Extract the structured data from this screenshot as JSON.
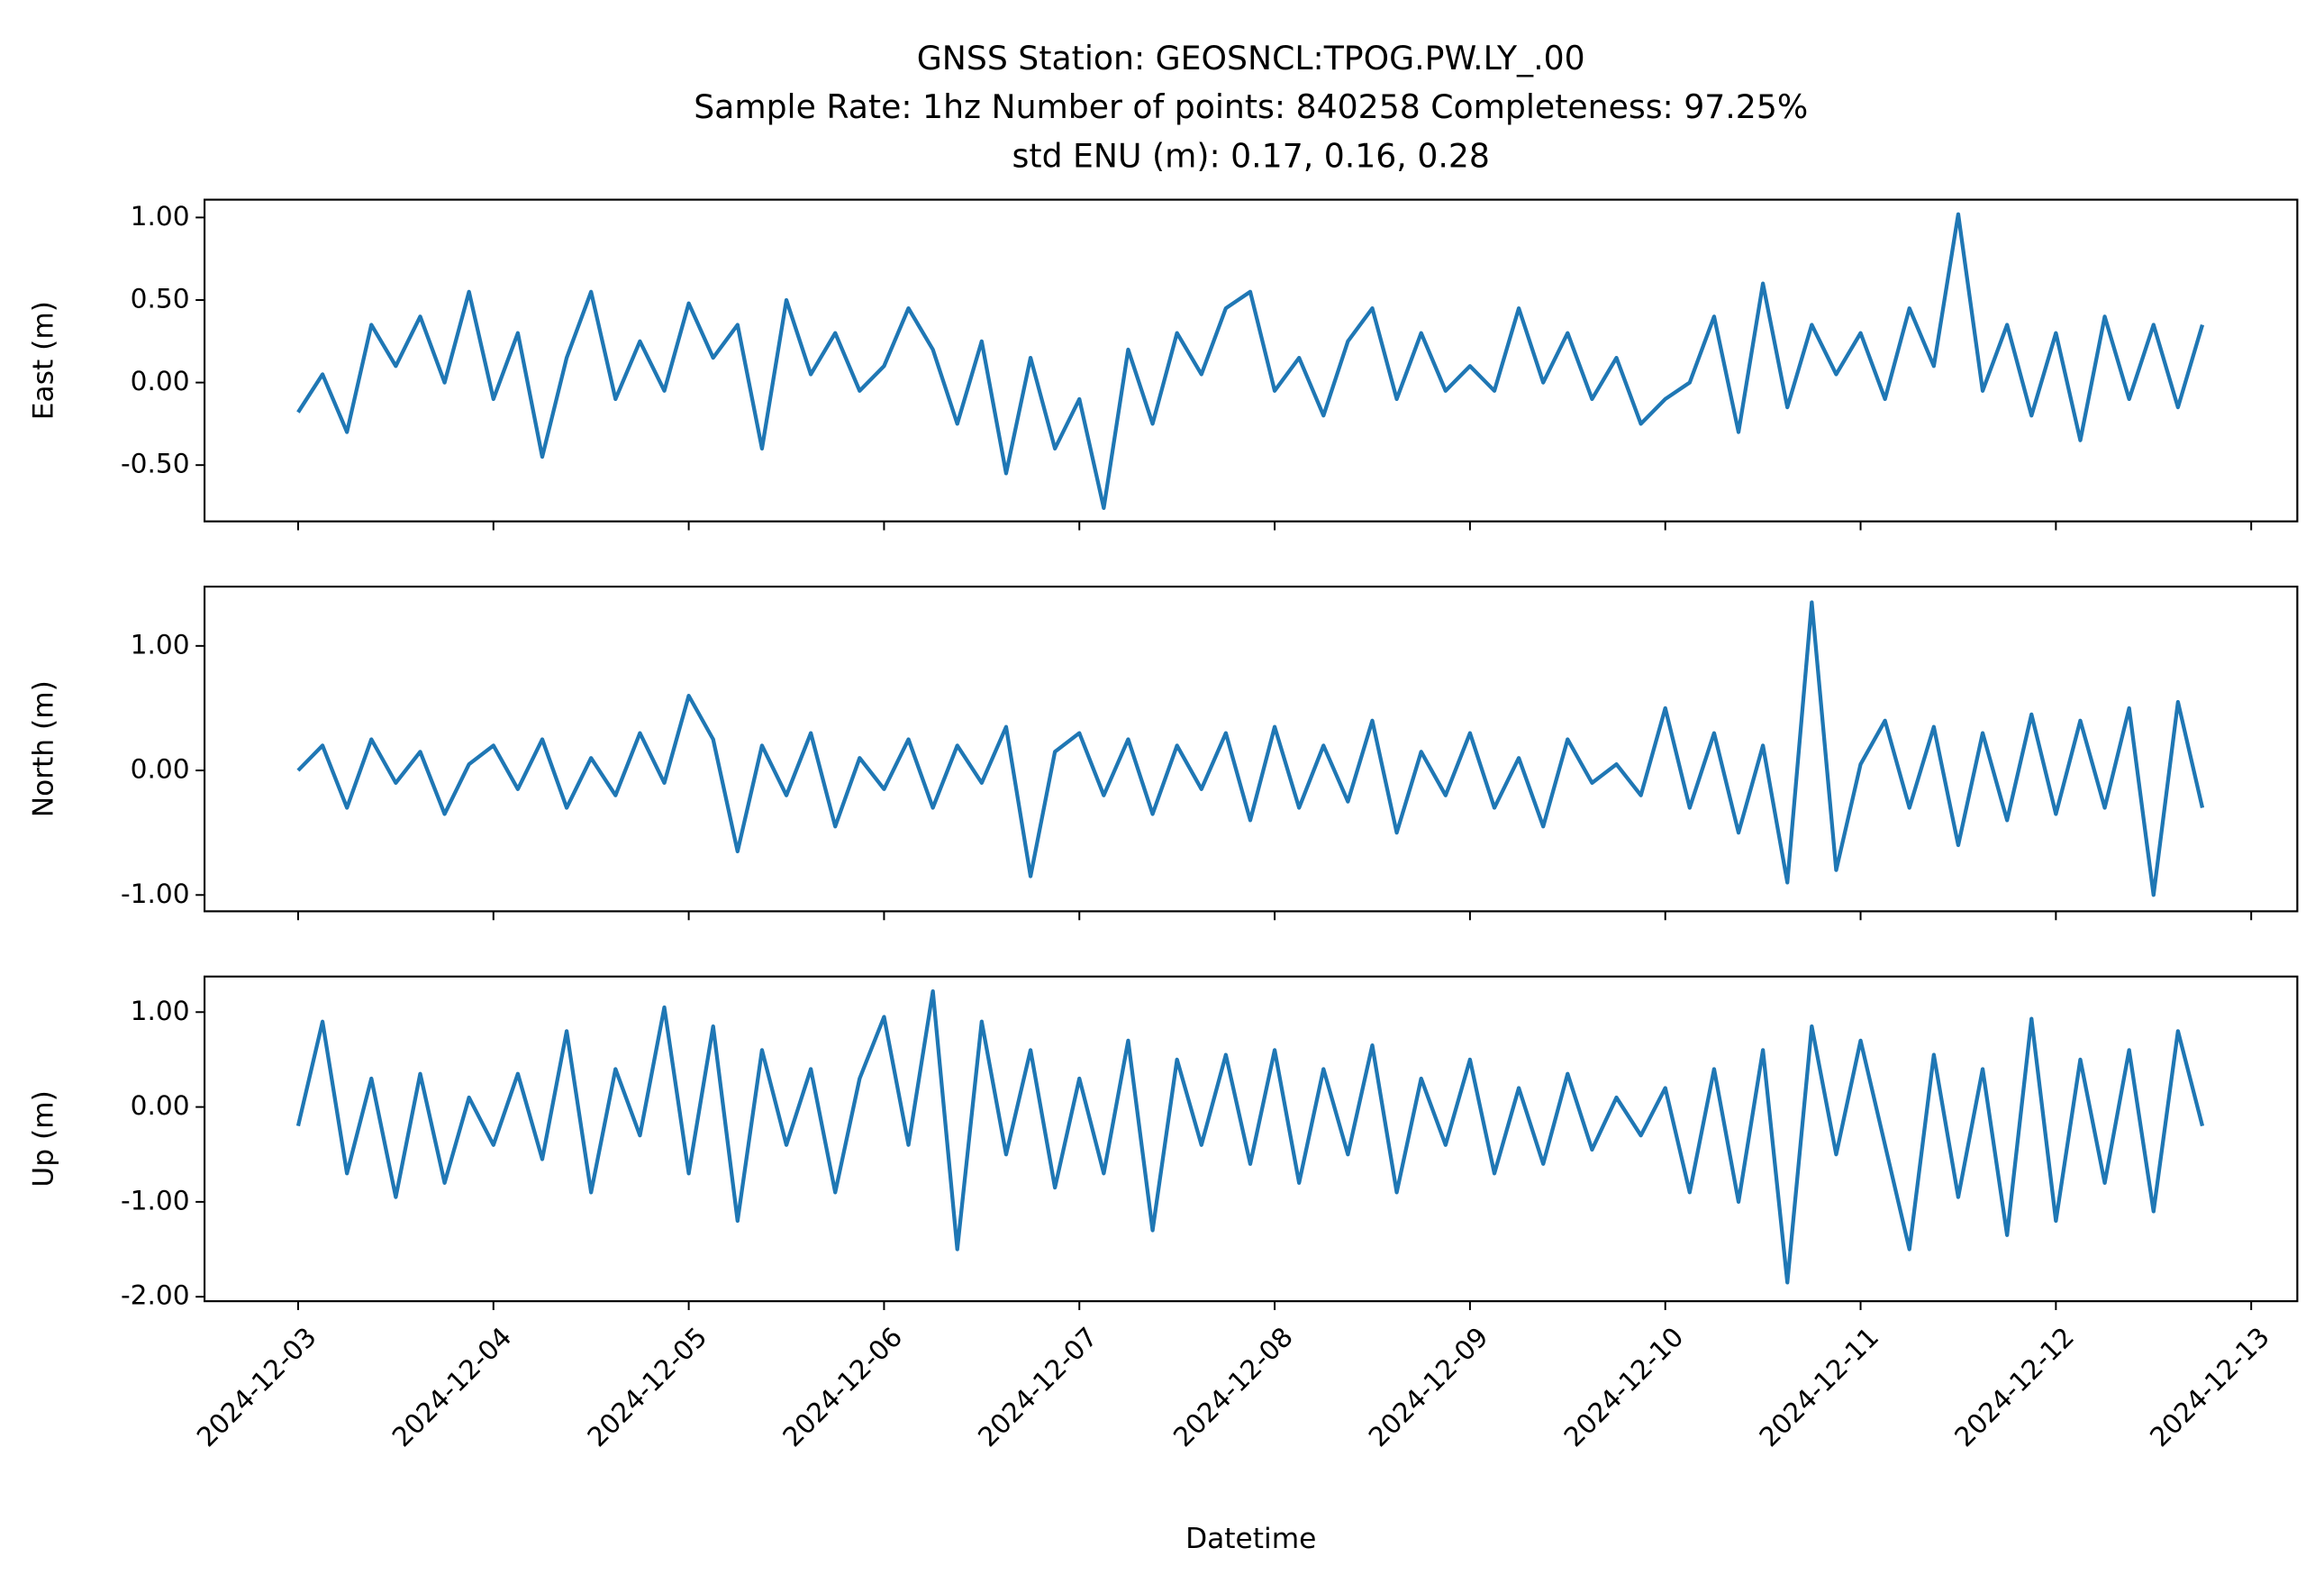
{
  "chart_data": {
    "type": "line",
    "title": [
      "GNSS Station: GEOSNCL:TPOG.PW.LY_.00",
      "Sample Rate: 1hz   Number of points: 840258    Completeness:  97.25%",
      "std ENU (m):  0.17, 0.16, 0.28"
    ],
    "xlabel": "Datetime",
    "xlim": [
      "2024-12-02T12:30",
      "2024-12-13T05:40"
    ],
    "xticks": [
      "2024-12-03",
      "2024-12-04",
      "2024-12-05",
      "2024-12-06",
      "2024-12-07",
      "2024-12-08",
      "2024-12-09",
      "2024-12-10",
      "2024-12-11",
      "2024-12-12",
      "2024-12-13"
    ],
    "x": [
      "2024-12-03T00:00",
      "2024-12-03T03:00",
      "2024-12-03T06:00",
      "2024-12-03T09:00",
      "2024-12-03T12:00",
      "2024-12-03T15:00",
      "2024-12-03T18:00",
      "2024-12-03T21:00",
      "2024-12-04T00:00",
      "2024-12-04T03:00",
      "2024-12-04T06:00",
      "2024-12-04T09:00",
      "2024-12-04T12:00",
      "2024-12-04T15:00",
      "2024-12-04T18:00",
      "2024-12-04T21:00",
      "2024-12-05T00:00",
      "2024-12-05T03:00",
      "2024-12-05T06:00",
      "2024-12-05T09:00",
      "2024-12-05T12:00",
      "2024-12-05T15:00",
      "2024-12-05T18:00",
      "2024-12-05T21:00",
      "2024-12-06T00:00",
      "2024-12-06T03:00",
      "2024-12-06T06:00",
      "2024-12-06T09:00",
      "2024-12-06T12:00",
      "2024-12-06T15:00",
      "2024-12-06T18:00",
      "2024-12-06T21:00",
      "2024-12-07T00:00",
      "2024-12-07T03:00",
      "2024-12-07T06:00",
      "2024-12-07T09:00",
      "2024-12-07T12:00",
      "2024-12-07T15:00",
      "2024-12-07T18:00",
      "2024-12-07T21:00",
      "2024-12-08T00:00",
      "2024-12-08T03:00",
      "2024-12-08T06:00",
      "2024-12-08T09:00",
      "2024-12-08T12:00",
      "2024-12-08T15:00",
      "2024-12-08T18:00",
      "2024-12-08T21:00",
      "2024-12-09T00:00",
      "2024-12-09T03:00",
      "2024-12-09T06:00",
      "2024-12-09T09:00",
      "2024-12-09T12:00",
      "2024-12-09T15:00",
      "2024-12-09T18:00",
      "2024-12-09T21:00",
      "2024-12-10T00:00",
      "2024-12-10T03:00",
      "2024-12-10T06:00",
      "2024-12-10T09:00",
      "2024-12-10T12:00",
      "2024-12-10T15:00",
      "2024-12-10T18:00",
      "2024-12-10T21:00",
      "2024-12-11T00:00",
      "2024-12-11T03:00",
      "2024-12-11T06:00",
      "2024-12-11T09:00",
      "2024-12-11T12:00",
      "2024-12-11T15:00",
      "2024-12-11T18:00",
      "2024-12-11T21:00",
      "2024-12-12T00:00",
      "2024-12-12T03:00",
      "2024-12-12T06:00",
      "2024-12-12T09:00",
      "2024-12-12T12:00",
      "2024-12-12T15:00",
      "2024-12-12T18:00"
    ],
    "panels": [
      {
        "ylabel": "East (m)",
        "ylim": [
          -0.841,
          1.108
        ],
        "yticks": [
          {
            "value": -0.5,
            "label": "-0.50"
          },
          {
            "value": 0,
            "label": "0.00"
          },
          {
            "value": 0.5,
            "label": "0.50"
          },
          {
            "value": 1,
            "label": "1.00"
          }
        ],
        "series": [
          {
            "color": "#1f77b4",
            "values": [
              -0.18,
              0.05,
              -0.3,
              0.35,
              0.1,
              0.4,
              0.0,
              0.55,
              -0.1,
              0.3,
              -0.45,
              0.15,
              0.55,
              -0.1,
              0.25,
              -0.05,
              0.48,
              0.15,
              0.35,
              -0.4,
              0.5,
              0.05,
              0.3,
              -0.05,
              0.1,
              0.45,
              0.2,
              -0.25,
              0.25,
              -0.55,
              0.15,
              -0.4,
              -0.1,
              -0.76,
              0.2,
              -0.25,
              0.3,
              0.05,
              0.45,
              0.55,
              -0.05,
              0.15,
              -0.2,
              0.25,
              0.45,
              -0.1,
              0.3,
              -0.05,
              0.1,
              -0.05,
              0.45,
              0.0,
              0.3,
              -0.1,
              0.15,
              -0.25,
              -0.1,
              0.0,
              0.4,
              -0.3,
              0.6,
              -0.15,
              0.35,
              0.05,
              0.3,
              -0.1,
              0.45,
              0.1,
              1.02,
              -0.05,
              0.35,
              -0.2,
              0.3,
              -0.35,
              0.4,
              -0.1,
              0.35,
              -0.15,
              0.35
            ]
          }
        ]
      },
      {
        "ylabel": "North (m)",
        "ylim": [
          -1.131,
          1.476
        ],
        "yticks": [
          {
            "value": -1,
            "label": "-1.00"
          },
          {
            "value": 0,
            "label": "0.00"
          },
          {
            "value": 1,
            "label": "1.00"
          }
        ],
        "series": [
          {
            "color": "#1f77b4",
            "values": [
              0.0,
              0.2,
              -0.3,
              0.25,
              -0.1,
              0.15,
              -0.35,
              0.05,
              0.2,
              -0.15,
              0.25,
              -0.3,
              0.1,
              -0.2,
              0.3,
              -0.1,
              0.6,
              0.25,
              -0.65,
              0.2,
              -0.2,
              0.3,
              -0.45,
              0.1,
              -0.15,
              0.25,
              -0.3,
              0.2,
              -0.1,
              0.35,
              -0.85,
              0.15,
              0.3,
              -0.2,
              0.25,
              -0.35,
              0.2,
              -0.15,
              0.3,
              -0.4,
              0.35,
              -0.3,
              0.2,
              -0.25,
              0.4,
              -0.5,
              0.15,
              -0.2,
              0.3,
              -0.3,
              0.1,
              -0.45,
              0.25,
              -0.1,
              0.05,
              -0.2,
              0.5,
              -0.3,
              0.3,
              -0.5,
              0.2,
              -0.9,
              1.35,
              -0.8,
              0.05,
              0.4,
              -0.3,
              0.35,
              -0.6,
              0.3,
              -0.4,
              0.45,
              -0.35,
              0.4,
              -0.3,
              0.5,
              -1.0,
              0.55,
              -0.3
            ]
          }
        ]
      },
      {
        "ylabel": "Up (m)",
        "ylim": [
          -2.047,
          1.375
        ],
        "yticks": [
          {
            "value": -2,
            "label": "-2.00"
          },
          {
            "value": -1,
            "label": "-1.00"
          },
          {
            "value": 0,
            "label": "0.00"
          },
          {
            "value": 1,
            "label": "1.00"
          }
        ],
        "series": [
          {
            "color": "#1f77b4",
            "values": [
              -0.2,
              0.9,
              -0.7,
              0.3,
              -0.95,
              0.35,
              -0.8,
              0.1,
              -0.4,
              0.35,
              -0.55,
              0.8,
              -0.9,
              0.4,
              -0.3,
              1.05,
              -0.7,
              0.85,
              -1.2,
              0.6,
              -0.4,
              0.4,
              -0.9,
              0.3,
              0.95,
              -0.4,
              1.22,
              -1.5,
              0.9,
              -0.5,
              0.6,
              -0.85,
              0.3,
              -0.7,
              0.7,
              -1.3,
              0.5,
              -0.4,
              0.55,
              -0.6,
              0.6,
              -0.8,
              0.4,
              -0.5,
              0.65,
              -0.9,
              0.3,
              -0.4,
              0.5,
              -0.7,
              0.2,
              -0.6,
              0.35,
              -0.45,
              0.1,
              -0.3,
              0.2,
              -0.9,
              0.4,
              -1.0,
              0.6,
              -1.85,
              0.85,
              -0.5,
              0.7,
              -0.4,
              -1.5,
              0.55,
              -0.95,
              0.4,
              -1.35,
              0.93,
              -1.2,
              0.5,
              -0.8,
              0.6,
              -1.1,
              0.8,
              -0.2
            ]
          }
        ]
      }
    ]
  }
}
